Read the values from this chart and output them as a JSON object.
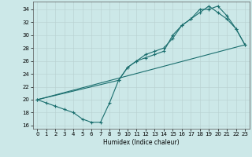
{
  "xlabel": "Humidex (Indice chaleur)",
  "background_color": "#cce8e8",
  "grid_major_color": "#c0d8d8",
  "grid_minor_color": "#daeaea",
  "line_color": "#1a6e6e",
  "xlim": [
    -0.5,
    23.5
  ],
  "ylim": [
    15.5,
    35.2
  ],
  "xticks": [
    0,
    1,
    2,
    3,
    4,
    5,
    6,
    7,
    8,
    9,
    10,
    11,
    12,
    13,
    14,
    15,
    16,
    17,
    18,
    19,
    20,
    21,
    22,
    23
  ],
  "yticks": [
    16,
    18,
    20,
    22,
    24,
    26,
    28,
    30,
    32,
    34
  ],
  "line1_x": [
    0,
    1,
    2,
    3,
    4,
    5,
    6,
    7,
    8,
    9,
    10,
    11,
    12,
    13,
    14,
    15,
    16,
    17,
    18,
    19,
    20,
    21,
    22,
    23
  ],
  "line1_y": [
    20,
    19.5,
    19,
    18.5,
    18,
    17,
    16.5,
    16.5,
    19.5,
    23,
    25,
    26,
    26.5,
    27,
    27.5,
    30,
    31.5,
    32.5,
    33.5,
    34.5,
    33.5,
    32.5,
    31,
    28.5
  ],
  "line2_x": [
    0,
    9,
    10,
    11,
    12,
    13,
    14,
    15,
    16,
    17,
    18,
    19,
    20,
    21,
    22,
    23
  ],
  "line2_y": [
    20,
    23,
    25,
    26,
    27,
    27.5,
    28,
    29.5,
    31.5,
    32.5,
    34,
    34,
    34.5,
    33,
    31,
    28.5
  ],
  "line3_x": [
    0,
    23
  ],
  "line3_y": [
    20,
    28.5
  ]
}
